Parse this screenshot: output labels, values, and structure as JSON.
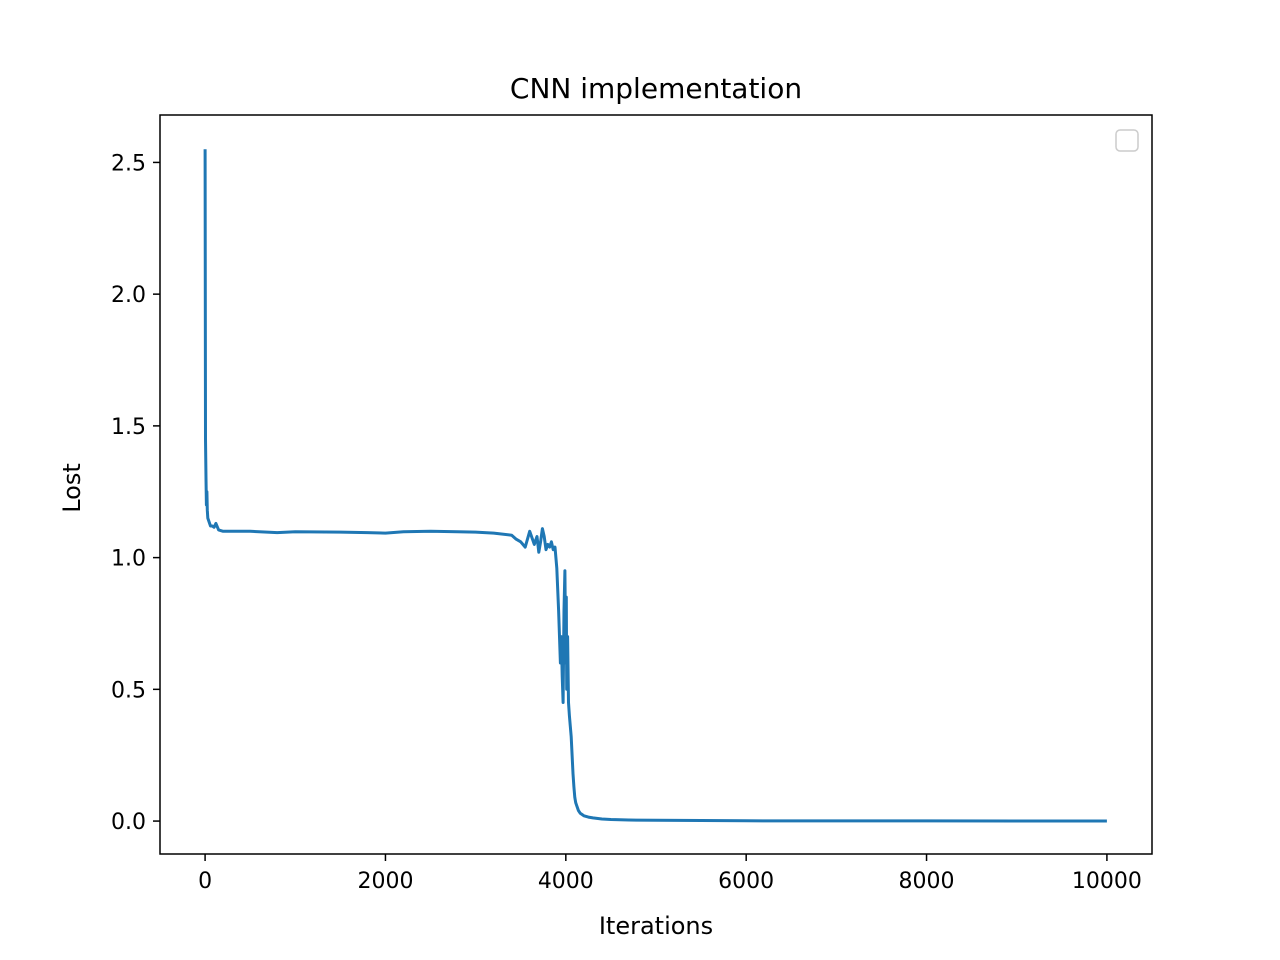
{
  "chart_data": {
    "type": "line",
    "title": "CNN implementation",
    "xlabel": "Iterations",
    "ylabel": "Lost",
    "xlim": [
      -500,
      10500
    ],
    "ylim": [
      -0.125,
      2.68
    ],
    "xticks": [
      0,
      2000,
      4000,
      6000,
      8000,
      10000
    ],
    "xtick_labels": [
      "0",
      "2000",
      "4000",
      "6000",
      "8000",
      "10000"
    ],
    "yticks": [
      0.0,
      0.5,
      1.0,
      1.5,
      2.0,
      2.5
    ],
    "ytick_labels": [
      "0.0",
      "0.5",
      "1.0",
      "1.5",
      "2.0",
      "2.5"
    ],
    "grid": false,
    "legend": {
      "placement": "upper right",
      "entries": []
    },
    "series": [
      {
        "color": "#1f77b4",
        "x": [
          0,
          5,
          10,
          15,
          20,
          25,
          30,
          40,
          50,
          60,
          80,
          100,
          120,
          150,
          200,
          300,
          500,
          800,
          1000,
          1500,
          1800,
          2000,
          2200,
          2500,
          2800,
          3000,
          3200,
          3400,
          3450,
          3500,
          3550,
          3600,
          3630,
          3650,
          3680,
          3700,
          3720,
          3740,
          3760,
          3780,
          3800,
          3820,
          3840,
          3860,
          3880,
          3900,
          3920,
          3940,
          3950,
          3960,
          3970,
          3980,
          3990,
          4000,
          4005,
          4010,
          4020,
          4030,
          4040,
          4050,
          4060,
          4070,
          4080,
          4090,
          4100,
          4110,
          4120,
          4130,
          4140,
          4160,
          4180,
          4200,
          4250,
          4300,
          4400,
          4500,
          4700,
          5000,
          5500,
          6000,
          7000,
          8000,
          9000,
          10000
        ],
        "y": [
          2.55,
          1.45,
          1.3,
          1.2,
          1.25,
          1.18,
          1.15,
          1.14,
          1.13,
          1.12,
          1.12,
          1.115,
          1.13,
          1.105,
          1.1,
          1.1,
          1.1,
          1.095,
          1.098,
          1.097,
          1.095,
          1.093,
          1.098,
          1.1,
          1.098,
          1.097,
          1.093,
          1.085,
          1.07,
          1.06,
          1.04,
          1.1,
          1.07,
          1.05,
          1.08,
          1.02,
          1.06,
          1.11,
          1.08,
          1.03,
          1.05,
          1.04,
          1.06,
          1.03,
          1.04,
          0.96,
          0.8,
          0.6,
          0.7,
          0.55,
          0.45,
          0.8,
          0.95,
          0.6,
          0.85,
          0.5,
          0.7,
          0.45,
          0.4,
          0.36,
          0.32,
          0.25,
          0.18,
          0.13,
          0.09,
          0.07,
          0.06,
          0.05,
          0.04,
          0.03,
          0.025,
          0.02,
          0.015,
          0.012,
          0.008,
          0.006,
          0.004,
          0.003,
          0.002,
          0.001,
          0.0008,
          0.0005,
          0.0003,
          0.0002
        ]
      }
    ]
  }
}
